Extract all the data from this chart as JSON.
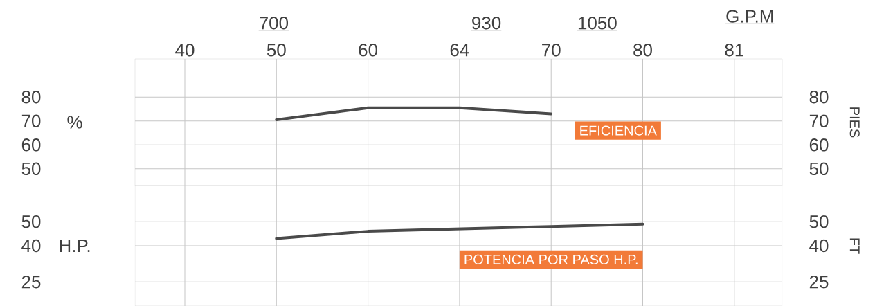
{
  "chart_data": [
    {
      "type": "line",
      "categories": [
        "40",
        "50",
        "60",
        "64",
        "70",
        "80",
        "81"
      ],
      "x2lim": [
        550,
        1250
      ],
      "x2ticks": [
        700,
        930,
        1050
      ],
      "x2label": "G.P.M",
      "ylabel": "%",
      "y2label": "PIES",
      "ylim": [
        43,
        96
      ],
      "yticks": [
        50,
        60,
        70,
        80
      ],
      "y2lim": [
        43,
        96
      ],
      "y2ticks": [
        50,
        60,
        70,
        80
      ],
      "grid": true,
      "series": [
        {
          "name": "EFICIENCIA",
          "color": "#4a4a4a",
          "values": [
            null,
            70.5,
            75.5,
            75.5,
            73,
            null,
            null
          ]
        }
      ]
    },
    {
      "type": "line",
      "categories": [
        "40",
        "50",
        "60",
        "64",
        "70",
        "80",
        "81"
      ],
      "tick_labels": "y",
      "ylabel": "H.P.",
      "y2label": "FT",
      "ylim": [
        15,
        65
      ],
      "yticks": [
        25,
        40,
        50
      ],
      "y2lim": [
        15,
        65
      ],
      "y2ticks": [
        25,
        40,
        50
      ],
      "grid": true,
      "series": [
        {
          "name": "POTENCIA POR PASO H.P.",
          "color": "#4a4a4a",
          "values": [
            null,
            43,
            46,
            47,
            48,
            49,
            null
          ]
        }
      ]
    }
  ]
}
